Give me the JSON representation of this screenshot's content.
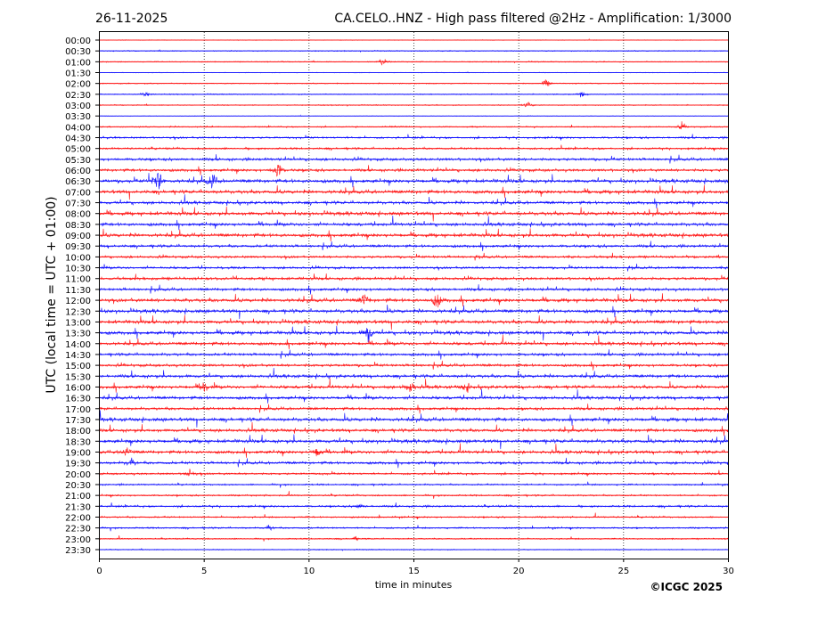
{
  "chart_data": {
    "type": "line",
    "date": "26-11-2025",
    "title": "CA.CELO..HNZ - High pass filtered @2Hz - Amplification: 1/3000",
    "xlabel": "time in minutes",
    "ylabel": "UTC (local time = UTC + 01:00)",
    "xlim": [
      0,
      30
    ],
    "xticks": [
      "0",
      "5",
      "10",
      "15",
      "20",
      "25",
      "30"
    ],
    "xtick_values": [
      0,
      5,
      10,
      15,
      20,
      25,
      30
    ],
    "grid": "vertical dotted at each x tick",
    "row_labels": [
      "00:00",
      "00:30",
      "01:00",
      "01:30",
      "02:00",
      "02:30",
      "03:00",
      "03:30",
      "04:00",
      "04:30",
      "05:00",
      "05:30",
      "06:00",
      "06:30",
      "07:00",
      "07:30",
      "08:00",
      "08:30",
      "09:00",
      "09:30",
      "10:00",
      "10:30",
      "11:00",
      "11:30",
      "12:00",
      "12:30",
      "13:00",
      "13:30",
      "14:00",
      "14:30",
      "15:00",
      "15:30",
      "16:00",
      "16:30",
      "17:00",
      "17:30",
      "18:00",
      "18:30",
      "19:00",
      "19:30",
      "20:00",
      "20:30",
      "21:00",
      "21:30",
      "22:00",
      "22:30",
      "23:00",
      "23:30"
    ],
    "row_colors": [
      "#ff0000",
      "#0000ff"
    ],
    "row_noise_level": [
      0.3,
      0.5,
      0.6,
      0.3,
      0.6,
      0.6,
      0.6,
      0.3,
      1,
      2,
      2,
      3,
      3,
      4,
      4,
      3.5,
      4,
      3.5,
      4,
      3,
      2.5,
      2.5,
      3,
      3,
      4,
      4,
      4,
      4,
      3.5,
      3,
      3,
      3.5,
      3.5,
      3.5,
      3,
      4,
      3.5,
      4,
      3.5,
      3,
      2,
      1.5,
      1.5,
      2,
      1.5,
      1.5,
      1,
      0.5
    ],
    "events": [
      {
        "row": 2,
        "minute": 13.5,
        "amp": 4
      },
      {
        "row": 4,
        "minute": 21.3,
        "amp": 5
      },
      {
        "row": 5,
        "minute": 2.2,
        "amp": 3
      },
      {
        "row": 5,
        "minute": 23.0,
        "amp": 3
      },
      {
        "row": 6,
        "minute": 20.4,
        "amp": 4
      },
      {
        "row": 8,
        "minute": 27.8,
        "amp": 4
      },
      {
        "row": 12,
        "minute": 8.5,
        "amp": 8
      },
      {
        "row": 13,
        "minute": 2.8,
        "amp": 12
      },
      {
        "row": 13,
        "minute": 5.4,
        "amp": 10
      },
      {
        "row": 24,
        "minute": 12.6,
        "amp": 7
      },
      {
        "row": 24,
        "minute": 16.1,
        "amp": 8
      },
      {
        "row": 27,
        "minute": 12.8,
        "amp": 10
      },
      {
        "row": 32,
        "minute": 5.0,
        "amp": 6
      },
      {
        "row": 32,
        "minute": 14.8,
        "amp": 8
      },
      {
        "row": 32,
        "minute": 17.5,
        "amp": 5
      },
      {
        "row": 38,
        "minute": 1.3,
        "amp": 5
      },
      {
        "row": 38,
        "minute": 10.4,
        "amp": 6
      },
      {
        "row": 39,
        "minute": 1.5,
        "amp": 5
      },
      {
        "row": 40,
        "minute": 4.3,
        "amp": 4
      },
      {
        "row": 43,
        "minute": 12.4,
        "amp": 3
      },
      {
        "row": 45,
        "minute": 8.1,
        "amp": 3
      },
      {
        "row": 46,
        "minute": 12.2,
        "amp": 2
      }
    ]
  },
  "copyright": "©ICGC 2025"
}
